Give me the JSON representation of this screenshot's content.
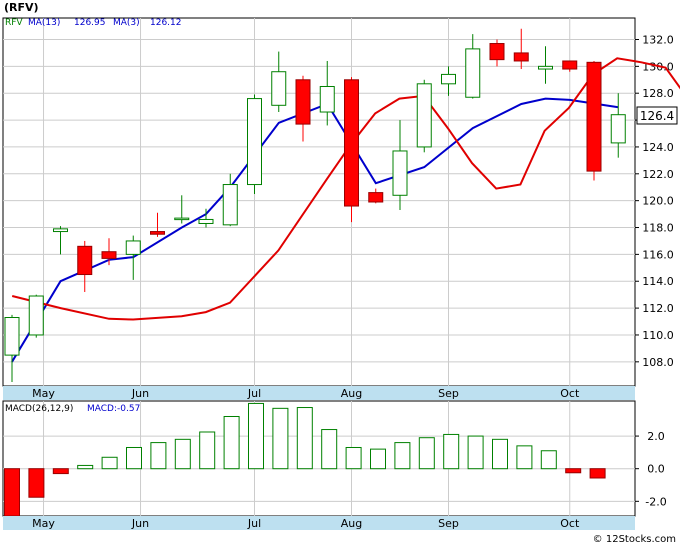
{
  "ticker_title": "(RFV)",
  "legend": {
    "ticker": "RFV",
    "ma13_label": "MA(13)",
    "ma13_value": "126.95",
    "ma3_label": "MA(3)",
    "ma3_value": "126.12"
  },
  "macd_legend": {
    "params": "MACD(26,12,9)",
    "value_label": "MACD:-0.57"
  },
  "watermark": "© 12Stocks.com",
  "last_price_label": "126.4",
  "colors": {
    "up_candle": "#008000",
    "down_candle": "#ff0000",
    "ma13": "#0000cc",
    "ma3": "#e00000",
    "grid": "#cccccc",
    "axis_band": "#bde0f0",
    "tick_text": "#000000"
  },
  "chart_data": [
    {
      "type": "candlestick",
      "title": "(RFV)",
      "ylim": [
        106.2,
        133.6
      ],
      "yticks": [
        108,
        110,
        112,
        114,
        116,
        118,
        120,
        122,
        124,
        126,
        128,
        130,
        132
      ],
      "xticks": [
        "May",
        "Jun",
        "Jul",
        "Aug",
        "Sep",
        "Oct"
      ],
      "xtick_after_candle": [
        1.3,
        5.3,
        10,
        14,
        18,
        23
      ],
      "grid": true,
      "candles": [
        {
          "o": 108.5,
          "h": 111.5,
          "l": 106.5,
          "c": 111.3
        },
        {
          "o": 110.0,
          "h": 113.0,
          "l": 109.8,
          "c": 112.9
        },
        {
          "o": 117.7,
          "h": 118.1,
          "l": 116.0,
          "c": 117.9
        },
        {
          "o": 116.6,
          "h": 117.0,
          "l": 113.2,
          "c": 114.5
        },
        {
          "o": 116.2,
          "h": 117.2,
          "l": 115.2,
          "c": 115.7
        },
        {
          "o": 116.0,
          "h": 117.4,
          "l": 114.1,
          "c": 117.0
        },
        {
          "o": 117.7,
          "h": 119.1,
          "l": 117.3,
          "c": 117.5
        },
        {
          "o": 118.6,
          "h": 120.4,
          "l": 118.3,
          "c": 118.7
        },
        {
          "o": 118.3,
          "h": 119.4,
          "l": 118.0,
          "c": 118.6
        },
        {
          "o": 118.2,
          "h": 122.0,
          "l": 118.1,
          "c": 121.2
        },
        {
          "o": 121.2,
          "h": 127.9,
          "l": 120.5,
          "c": 127.6
        },
        {
          "o": 127.1,
          "h": 131.1,
          "l": 126.6,
          "c": 129.6
        },
        {
          "o": 129.0,
          "h": 129.3,
          "l": 124.4,
          "c": 125.7
        },
        {
          "o": 126.6,
          "h": 130.4,
          "l": 125.6,
          "c": 128.5
        },
        {
          "o": 129.0,
          "h": 129.2,
          "l": 118.4,
          "c": 119.6
        },
        {
          "o": 120.6,
          "h": 120.9,
          "l": 119.8,
          "c": 119.9
        },
        {
          "o": 120.4,
          "h": 126.0,
          "l": 119.3,
          "c": 123.7
        },
        {
          "o": 124.0,
          "h": 129.0,
          "l": 123.6,
          "c": 128.7
        },
        {
          "o": 128.7,
          "h": 130.0,
          "l": 127.8,
          "c": 129.4
        },
        {
          "o": 127.7,
          "h": 132.4,
          "l": 127.6,
          "c": 131.3
        },
        {
          "o": 131.7,
          "h": 132.0,
          "l": 130.0,
          "c": 130.5
        },
        {
          "o": 131.0,
          "h": 132.8,
          "l": 129.8,
          "c": 130.4
        },
        {
          "o": 129.8,
          "h": 131.5,
          "l": 128.7,
          "c": 130.0
        },
        {
          "o": 130.4,
          "h": 130.4,
          "l": 129.6,
          "c": 129.8
        },
        {
          "o": 130.3,
          "h": 130.4,
          "l": 121.5,
          "c": 122.2
        },
        {
          "o": 124.3,
          "h": 128.0,
          "l": 123.2,
          "c": 126.4
        }
      ],
      "series": [
        {
          "name": "MA(13)",
          "color": "#0000cc",
          "points": [
            [
              0,
              108.0
            ],
            [
              2,
              114.0
            ],
            [
              4,
              115.6
            ],
            [
              5,
              115.8
            ],
            [
              7,
              118.0
            ],
            [
              8,
              119.0
            ],
            [
              9,
              121.0
            ],
            [
              11,
              125.8
            ],
            [
              13,
              127.2
            ],
            [
              15,
              121.3
            ],
            [
              17,
              122.5
            ],
            [
              19,
              125.4
            ],
            [
              21,
              127.2
            ],
            [
              22,
              127.6
            ],
            [
              23,
              127.5
            ],
            [
              25,
              126.95
            ]
          ]
        },
        {
          "name": "MA(3)",
          "color": "#e00000",
          "points": [
            [
              0,
              112.9
            ],
            [
              2,
              112.0
            ],
            [
              4,
              111.2
            ],
            [
              5,
              111.15
            ],
            [
              7,
              111.4
            ],
            [
              8,
              111.7
            ],
            [
              9,
              112.4
            ],
            [
              11,
              116.3
            ],
            [
              13,
              121.6
            ],
            [
              14,
              124.2
            ],
            [
              15,
              126.5
            ],
            [
              16,
              127.6
            ],
            [
              17,
              127.8
            ],
            [
              18,
              125.4
            ],
            [
              19,
              122.8
            ],
            [
              20,
              120.9
            ],
            [
              21,
              121.2
            ],
            [
              22,
              125.2
            ],
            [
              23,
              126.9
            ],
            [
              24,
              129.4
            ],
            [
              25,
              130.6
            ],
            [
              26,
              130.3
            ],
            [
              27,
              129.9
            ],
            [
              28,
              127.4
            ],
            [
              29,
              126.1
            ]
          ]
        }
      ]
    },
    {
      "type": "bar",
      "title": "MACD(26,12,9)",
      "ylim": [
        -2.9,
        4.15
      ],
      "yticks": [
        -2.0,
        0.0,
        2.0
      ],
      "xticks": [
        "May",
        "Jun",
        "Jul",
        "Aug",
        "Sep",
        "Oct"
      ],
      "grid": true,
      "values": [
        -2.9,
        -1.75,
        -0.3,
        0.2,
        0.7,
        1.3,
        1.6,
        1.8,
        2.25,
        3.2,
        4.0,
        3.7,
        3.75,
        2.4,
        1.3,
        1.2,
        1.6,
        1.9,
        2.1,
        2.0,
        1.8,
        1.4,
        1.1,
        -0.25,
        -0.57
      ]
    }
  ]
}
